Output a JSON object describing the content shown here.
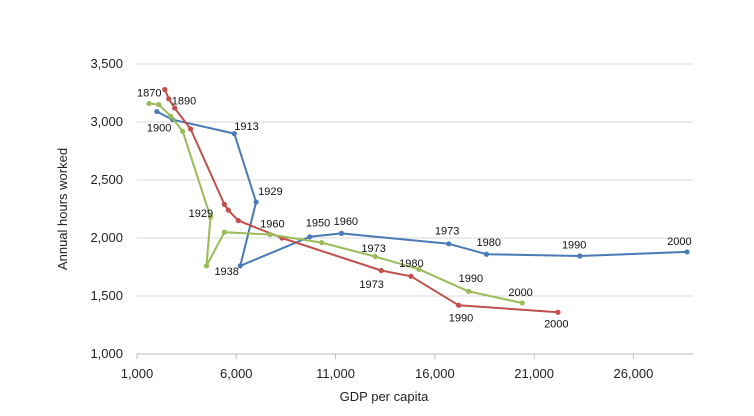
{
  "colors": {
    "series1": "#4a7ab5",
    "series2": "#c0504d",
    "series3": "#9bbb59",
    "grid": "#d9d9d9"
  },
  "chart_data": {
    "type": "line",
    "title": "",
    "xlabel": "GDP per capita",
    "ylabel": "Annual hours worked",
    "xlim": [
      1000,
      29000
    ],
    "ylim": [
      1000,
      3500
    ],
    "xticks": [
      "1,000",
      "6,000",
      "11,000",
      "16,000",
      "21,000",
      "26,000"
    ],
    "yticks": [
      "1,000",
      "1,500",
      "2,000",
      "2,500",
      "3,000",
      "3,500"
    ],
    "grid": "horizontal",
    "legend": "none",
    "series": [
      {
        "color": "#4a7ab5",
        "points": [
          [
            2000,
            3090
          ],
          [
            2800,
            3020
          ],
          [
            5900,
            2900
          ],
          [
            7000,
            2310
          ],
          [
            6200,
            1760
          ],
          [
            9700,
            2010
          ],
          [
            11300,
            2040
          ],
          [
            16700,
            1950
          ],
          [
            18600,
            1860
          ],
          [
            23300,
            1845
          ],
          [
            28700,
            1880
          ]
        ]
      },
      {
        "color": "#c0504d",
        "points": [
          [
            2400,
            3280
          ],
          [
            2600,
            3200
          ],
          [
            2900,
            3120
          ],
          [
            3700,
            2940
          ],
          [
            5400,
            2290
          ],
          [
            5600,
            2240
          ],
          [
            6100,
            2150
          ],
          [
            8300,
            2000
          ],
          [
            13300,
            1720
          ],
          [
            14800,
            1670
          ],
          [
            17200,
            1420
          ],
          [
            22200,
            1360
          ]
        ]
      },
      {
        "color": "#9bbb59",
        "points": [
          [
            1600,
            3160
          ],
          [
            2100,
            3150
          ],
          [
            2700,
            3050
          ],
          [
            3300,
            2920
          ],
          [
            4700,
            2180
          ],
          [
            4500,
            1760
          ],
          [
            5400,
            2050
          ],
          [
            7700,
            2030
          ],
          [
            10300,
            1960
          ],
          [
            13000,
            1840
          ],
          [
            15200,
            1730
          ],
          [
            17700,
            1540
          ],
          [
            20400,
            1440
          ]
        ]
      }
    ],
    "annotations": [
      {
        "text": "1870",
        "x": 1000,
        "y": 3220
      },
      {
        "text": "1890",
        "x": 2750,
        "y": 3150
      },
      {
        "text": "1900",
        "x": 1500,
        "y": 2920
      },
      {
        "text": "1913",
        "x": 5900,
        "y": 2930
      },
      {
        "text": "1929",
        "x": 7100,
        "y": 2370
      },
      {
        "text": "1929",
        "x": 3600,
        "y": 2180
      },
      {
        "text": "1938",
        "x": 4900,
        "y": 1680
      },
      {
        "text": "1960",
        "x": 7200,
        "y": 2090
      },
      {
        "text": "1950",
        "x": 9500,
        "y": 2100
      },
      {
        "text": "1960",
        "x": 10900,
        "y": 2110
      },
      {
        "text": "1973",
        "x": 16000,
        "y": 2030
      },
      {
        "text": "1980",
        "x": 18100,
        "y": 1930
      },
      {
        "text": "1990",
        "x": 22400,
        "y": 1910
      },
      {
        "text": "2000",
        "x": 27700,
        "y": 1940
      },
      {
        "text": "1973",
        "x": 12300,
        "y": 1880
      },
      {
        "text": "1980",
        "x": 14200,
        "y": 1750
      },
      {
        "text": "1990",
        "x": 17200,
        "y": 1620
      },
      {
        "text": "2000",
        "x": 19700,
        "y": 1500
      },
      {
        "text": "1973",
        "x": 12200,
        "y": 1570
      },
      {
        "text": "1990",
        "x": 16700,
        "y": 1280
      },
      {
        "text": "2000",
        "x": 21500,
        "y": 1230
      }
    ]
  }
}
